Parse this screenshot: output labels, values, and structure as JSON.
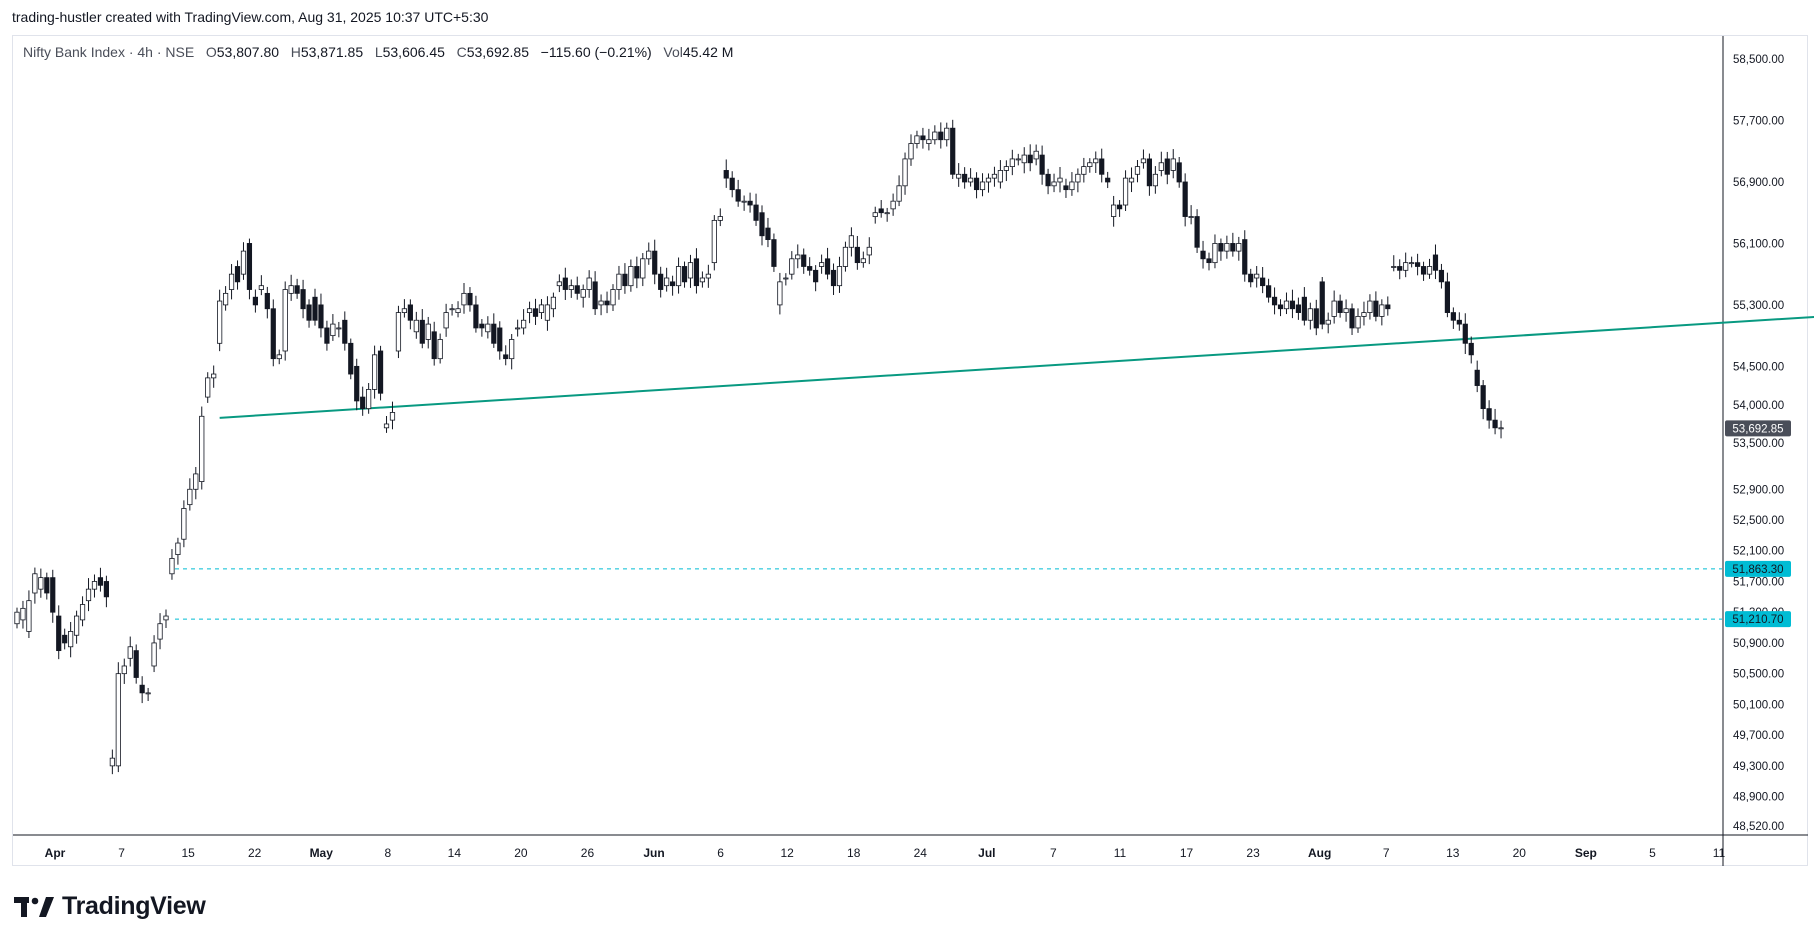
{
  "attribution": "trading-hustler created with TradingView.com, Aug 31, 2025 10:37 UTC+5:30",
  "legend": {
    "symbol": "Nifty Bank Index · 4h · NSE",
    "open_label": "O",
    "open": "53,807.80",
    "high_label": "H",
    "high": "53,871.85",
    "low_label": "L",
    "low": "53,606.45",
    "close_label": "C",
    "close": "53,692.85",
    "change": "−115.60 (−0.21%)",
    "vol_label": "Vol",
    "vol": "45.42 M"
  },
  "brand": {
    "name": "TradingView",
    "icon": "tradingview-logo-icon"
  },
  "colors": {
    "trendline": "#089981",
    "levels": "#00bcd4",
    "last_price_bg": "#4a4e59",
    "candle_up_fill": "#ffffff",
    "candle_down_fill": "#131722",
    "candle_stroke": "#131722"
  },
  "chart_data": {
    "type": "candlestick",
    "title": "",
    "ylim": [
      48400,
      58800
    ],
    "y_ticks": [
      "58,500.00",
      "57,700.00",
      "56,900.00",
      "56,100.00",
      "55,300.00",
      "54,500.00",
      "54,000.00",
      "53,500.00",
      "52,900.00",
      "52,500.00",
      "52,100.00",
      "51,700.00",
      "51,300.00",
      "50,900.00",
      "50,500.00",
      "50,100.00",
      "49,700.00",
      "49,300.00",
      "48,900.00",
      "48,520.00"
    ],
    "x_ticks": [
      {
        "label": "Apr",
        "bold": true
      },
      {
        "label": "7"
      },
      {
        "label": "15"
      },
      {
        "label": "22"
      },
      {
        "label": "May",
        "bold": true
      },
      {
        "label": "8"
      },
      {
        "label": "14"
      },
      {
        "label": "20"
      },
      {
        "label": "26"
      },
      {
        "label": "Jun",
        "bold": true
      },
      {
        "label": "6"
      },
      {
        "label": "12"
      },
      {
        "label": "18"
      },
      {
        "label": "24"
      },
      {
        "label": "Jul",
        "bold": true
      },
      {
        "label": "7"
      },
      {
        "label": "11"
      },
      {
        "label": "17"
      },
      {
        "label": "23"
      },
      {
        "label": "Aug",
        "bold": true
      },
      {
        "label": "7"
      },
      {
        "label": "13"
      },
      {
        "label": "20"
      },
      {
        "label": "Sep",
        "bold": true
      },
      {
        "label": "5"
      },
      {
        "label": "11"
      }
    ],
    "last_price": {
      "value": 53692.85,
      "label": "53,692.85"
    },
    "horizontal_levels": [
      {
        "value": 51863.3,
        "label": "51,863.30"
      },
      {
        "value": 51210.7,
        "label": "51,210.70"
      }
    ],
    "trendline": {
      "from": {
        "bar": 34,
        "price": 53830
      },
      "to": {
        "bar": 305,
        "price": 55160
      }
    },
    "candles_open_close": [
      [
        51150,
        51300
      ],
      [
        51200,
        51350
      ],
      [
        51050,
        51450
      ],
      [
        51550,
        51800
      ],
      [
        51600,
        51750
      ],
      [
        51750,
        51550
      ],
      [
        51750,
        51300
      ],
      [
        51250,
        50800
      ],
      [
        51000,
        50900
      ],
      [
        50850,
        51050
      ],
      [
        51000,
        51250
      ],
      [
        51200,
        51400
      ],
      [
        51450,
        51600
      ],
      [
        51600,
        51700
      ],
      [
        51750,
        51650
      ],
      [
        51700,
        51500
      ],
      [
        49300,
        49400
      ],
      [
        49300,
        50500
      ],
      [
        50500,
        50600
      ],
      [
        50700,
        50850
      ],
      [
        50800,
        50450
      ],
      [
        50350,
        50250
      ],
      [
        50250,
        50250
      ],
      [
        50600,
        50900
      ],
      [
        50950,
        51150
      ],
      [
        51200,
        51250
      ],
      [
        51800,
        52000
      ],
      [
        52050,
        52200
      ],
      [
        52250,
        52650
      ],
      [
        52700,
        52900
      ],
      [
        52900,
        53100
      ],
      [
        53000,
        53850
      ],
      [
        54100,
        54350
      ],
      [
        54350,
        54400
      ],
      [
        54800,
        55350
      ],
      [
        55300,
        55450
      ],
      [
        55500,
        55700
      ],
      [
        55800,
        55600
      ],
      [
        55700,
        56000
      ],
      [
        56100,
        55500
      ],
      [
        55400,
        55300
      ],
      [
        55500,
        55550
      ],
      [
        55450,
        55250
      ],
      [
        55250,
        54600
      ],
      [
        54600,
        54650
      ],
      [
        54700,
        55500
      ],
      [
        55450,
        55550
      ],
      [
        55550,
        55450
      ],
      [
        55500,
        55250
      ],
      [
        55300,
        55100
      ],
      [
        55400,
        55100
      ],
      [
        55300,
        55000
      ],
      [
        55000,
        54800
      ],
      [
        54900,
        55050
      ],
      [
        55000,
        55000
      ],
      [
        55100,
        54800
      ],
      [
        54800,
        54400
      ],
      [
        54500,
        54050
      ],
      [
        54100,
        53950
      ],
      [
        53950,
        54200
      ],
      [
        54200,
        54650
      ],
      [
        54700,
        54150
      ],
      [
        53700,
        53750
      ],
      [
        53800,
        53900
      ],
      [
        54700,
        55200
      ],
      [
        55200,
        55250
      ],
      [
        55300,
        55100
      ],
      [
        54950,
        55100
      ],
      [
        55100,
        54800
      ],
      [
        54850,
        55050
      ],
      [
        54950,
        54600
      ],
      [
        54600,
        54850
      ],
      [
        55000,
        55200
      ],
      [
        55250,
        55250
      ],
      [
        55200,
        55250
      ],
      [
        55300,
        55450
      ],
      [
        55450,
        55300
      ],
      [
        55300,
        55000
      ],
      [
        55050,
        55000
      ],
      [
        54950,
        55050
      ],
      [
        55050,
        54800
      ],
      [
        55000,
        54700
      ],
      [
        54650,
        54600
      ],
      [
        54600,
        54850
      ],
      [
        55000,
        55000
      ],
      [
        55000,
        55100
      ],
      [
        55200,
        55250
      ],
      [
        55250,
        55150
      ],
      [
        55200,
        55300
      ],
      [
        55100,
        55300
      ],
      [
        55250,
        55400
      ],
      [
        55550,
        55600
      ],
      [
        55650,
        55500
      ],
      [
        55500,
        55550
      ],
      [
        55550,
        55450
      ],
      [
        55400,
        55500
      ],
      [
        55500,
        55650
      ],
      [
        55600,
        55250
      ],
      [
        55300,
        55350
      ],
      [
        55350,
        55300
      ],
      [
        55300,
        55500
      ],
      [
        55500,
        55700
      ],
      [
        55700,
        55550
      ],
      [
        55550,
        55800
      ],
      [
        55800,
        55650
      ],
      [
        55650,
        55900
      ],
      [
        55900,
        56000
      ],
      [
        56000,
        55700
      ],
      [
        55700,
        55500
      ],
      [
        55550,
        55650
      ],
      [
        55600,
        55550
      ],
      [
        55550,
        55800
      ],
      [
        55800,
        55600
      ],
      [
        55650,
        55850
      ],
      [
        55900,
        55550
      ],
      [
        55600,
        55650
      ],
      [
        55650,
        55700
      ],
      [
        55850,
        56400
      ],
      [
        56400,
        56450
      ],
      [
        57050,
        56950
      ],
      [
        56950,
        56800
      ],
      [
        56800,
        56650
      ],
      [
        56650,
        56650
      ],
      [
        56650,
        56600
      ],
      [
        56600,
        56400
      ],
      [
        56500,
        56200
      ],
      [
        56300,
        56150
      ],
      [
        56150,
        55800
      ],
      [
        55300,
        55600
      ],
      [
        55650,
        55650
      ],
      [
        55700,
        55900
      ],
      [
        55900,
        55950
      ],
      [
        55950,
        55800
      ],
      [
        55800,
        55750
      ],
      [
        55750,
        55600
      ],
      [
        55800,
        55850
      ],
      [
        55900,
        55700
      ],
      [
        55750,
        55550
      ],
      [
        55550,
        55800
      ],
      [
        55800,
        56050
      ],
      [
        56050,
        56200
      ],
      [
        56050,
        55850
      ],
      [
        55850,
        55900
      ],
      [
        55950,
        56050
      ],
      [
        56450,
        56500
      ],
      [
        56550,
        56500
      ],
      [
        56500,
        56500
      ],
      [
        56550,
        56650
      ],
      [
        56650,
        56850
      ],
      [
        56850,
        57200
      ],
      [
        57200,
        57400
      ],
      [
        57400,
        57500
      ],
      [
        57500,
        57450
      ],
      [
        57400,
        57450
      ],
      [
        57450,
        57550
      ],
      [
        57550,
        57450
      ],
      [
        57450,
        57600
      ],
      [
        57600,
        57000
      ],
      [
        56950,
        57000
      ],
      [
        57000,
        56900
      ],
      [
        56900,
        56950
      ],
      [
        56950,
        56800
      ],
      [
        56800,
        56900
      ],
      [
        56900,
        56950
      ],
      [
        56950,
        57000
      ],
      [
        56900,
        57050
      ],
      [
        57050,
        57100
      ],
      [
        57100,
        57200
      ],
      [
        57200,
        57200
      ],
      [
        57150,
        57250
      ],
      [
        57250,
        57150
      ],
      [
        57200,
        57300
      ],
      [
        57250,
        57000
      ],
      [
        57000,
        56850
      ],
      [
        56850,
        56900
      ],
      [
        56900,
        56950
      ],
      [
        56850,
        56800
      ],
      [
        56800,
        56900
      ],
      [
        56900,
        57000
      ],
      [
        57000,
        57100
      ],
      [
        57100,
        57150
      ],
      [
        57150,
        57200
      ],
      [
        57200,
        57000
      ],
      [
        56950,
        56900
      ],
      [
        56450,
        56600
      ],
      [
        56600,
        56550
      ],
      [
        56600,
        56950
      ],
      [
        56900,
        56950
      ],
      [
        57000,
        57100
      ],
      [
        57150,
        57200
      ],
      [
        57200,
        56850
      ],
      [
        56850,
        57000
      ],
      [
        57050,
        57150
      ],
      [
        57200,
        57000
      ],
      [
        57050,
        57200
      ],
      [
        57150,
        56900
      ],
      [
        56900,
        56450
      ],
      [
        56450,
        56450
      ],
      [
        56450,
        56050
      ],
      [
        56000,
        55900
      ],
      [
        55900,
        55850
      ],
      [
        55850,
        56100
      ],
      [
        56100,
        56000
      ],
      [
        56000,
        56100
      ],
      [
        56100,
        56000
      ],
      [
        56000,
        56100
      ],
      [
        56150,
        55700
      ],
      [
        55700,
        55600
      ],
      [
        55650,
        55700
      ],
      [
        55650,
        55550
      ],
      [
        55550,
        55400
      ],
      [
        55400,
        55300
      ],
      [
        55300,
        55250
      ],
      [
        55250,
        55350
      ],
      [
        55350,
        55250
      ],
      [
        55300,
        55200
      ],
      [
        55400,
        55100
      ],
      [
        55100,
        55250
      ],
      [
        55250,
        55000
      ],
      [
        55600,
        55050
      ],
      [
        55050,
        55100
      ],
      [
        55150,
        55350
      ],
      [
        55350,
        55200
      ],
      [
        55200,
        55250
      ],
      [
        55250,
        55000
      ],
      [
        55000,
        55150
      ],
      [
        55150,
        55200
      ],
      [
        55200,
        55350
      ],
      [
        55350,
        55150
      ],
      [
        55150,
        55300
      ],
      [
        55300,
        55250
      ],
      [
        55800,
        55800
      ],
      [
        55800,
        55750
      ],
      [
        55750,
        55850
      ],
      [
        55850,
        55850
      ],
      [
        55850,
        55800
      ],
      [
        55800,
        55700
      ],
      [
        55700,
        55800
      ],
      [
        55950,
        55750
      ],
      [
        55750,
        55600
      ],
      [
        55600,
        55200
      ],
      [
        55200,
        55100
      ],
      [
        55100,
        55050
      ],
      [
        55050,
        54800
      ],
      [
        54800,
        54650
      ],
      [
        54450,
        54250
      ],
      [
        54250,
        53950
      ],
      [
        53950,
        53800
      ],
      [
        53800,
        53700
      ],
      [
        53700,
        53700
      ]
    ]
  }
}
